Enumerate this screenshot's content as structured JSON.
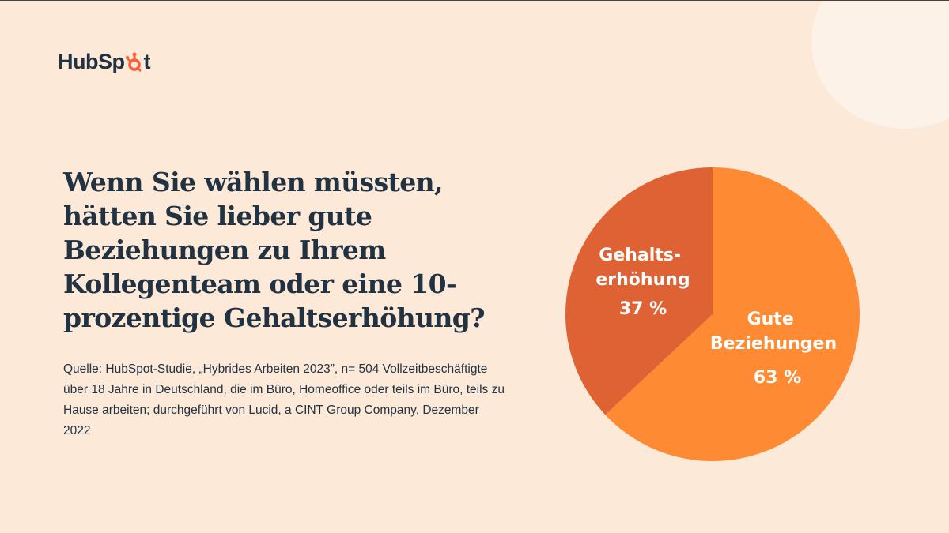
{
  "logo": {
    "text_left": "HubSp",
    "text_right": "t",
    "brand_color": "#ff5c35"
  },
  "title": "Wenn Sie wählen müssten, hätten Sie lieber gute Beziehungen zu Ihrem Kollegenteam oder eine 10-prozentige Gehaltserhöhung?",
  "source": "Quelle: HubSpot-Studie, „Hybrides Arbeiten 2023”, n= 504 Vollzeitbeschäftigte über 18 Jahre in Deutschland, die im Büro, Homeoffice oder teils im Büro, teils zu Hause arbeiten; durchgeführt von Lucid, a CINT Group Company, Dezember 2022",
  "chart_data": {
    "type": "pie",
    "slices": [
      {
        "label_lines": [
          "Gute",
          "Beziehungen"
        ],
        "value": 63,
        "value_label": "63 %",
        "color": "#fe8a34"
      },
      {
        "label_lines": [
          "Gehalts-",
          "erhöhung"
        ],
        "value": 37,
        "value_label": "37 %",
        "color": "#df6234"
      }
    ]
  }
}
